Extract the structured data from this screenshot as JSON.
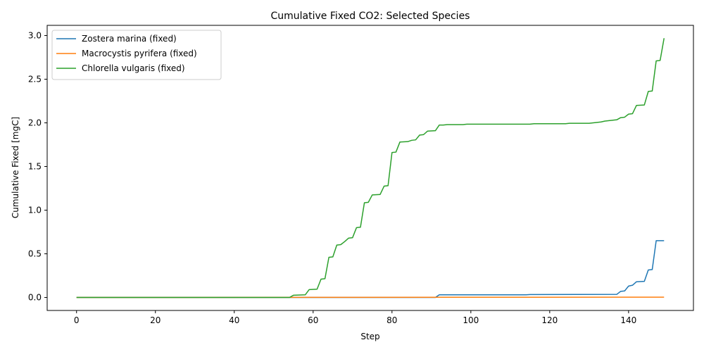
{
  "chart_data": {
    "type": "line",
    "title": "Cumulative Fixed CO2: Selected Species",
    "xlabel": "Step",
    "ylabel": "Cumulative Fixed [mgC]",
    "xlim": [
      -7.45,
      156.45
    ],
    "ylim": [
      -0.149,
      3.117
    ],
    "xticks": [
      0,
      20,
      40,
      60,
      80,
      100,
      120,
      140
    ],
    "yticks": [
      0.0,
      0.5,
      1.0,
      1.5,
      2.0,
      2.5,
      3.0
    ],
    "xtick_labels": [
      "0",
      "20",
      "40",
      "60",
      "80",
      "100",
      "120",
      "140"
    ],
    "ytick_labels": [
      "0.0",
      "0.5",
      "1.0",
      "1.5",
      "2.0",
      "2.5",
      "3.0"
    ],
    "grid": false,
    "legend_position": "upper-left",
    "series": [
      {
        "name": "Zostera marina (fixed)",
        "color": "#1f77b4",
        "points": [
          [
            0,
            0
          ],
          [
            91,
            0
          ],
          [
            92,
            0.03
          ],
          [
            114,
            0.03
          ],
          [
            115,
            0.033
          ],
          [
            137,
            0.035
          ],
          [
            138,
            0.07
          ],
          [
            139,
            0.075
          ],
          [
            140,
            0.13
          ],
          [
            141,
            0.14
          ],
          [
            142,
            0.18
          ],
          [
            144,
            0.185
          ],
          [
            145,
            0.315
          ],
          [
            146,
            0.32
          ],
          [
            147,
            0.65
          ],
          [
            149,
            0.65
          ]
        ]
      },
      {
        "name": "Macrocystis pyrifera (fixed)",
        "color": "#ff7f0e",
        "points": [
          [
            0,
            0
          ],
          [
            149,
            0.003
          ]
        ]
      },
      {
        "name": "Chlorella vulgaris (fixed)",
        "color": "#2ca02c",
        "points": [
          [
            0,
            0
          ],
          [
            54,
            0
          ],
          [
            55,
            0.025
          ],
          [
            58,
            0.03
          ],
          [
            59,
            0.09
          ],
          [
            61,
            0.095
          ],
          [
            62,
            0.21
          ],
          [
            63,
            0.215
          ],
          [
            64,
            0.46
          ],
          [
            65,
            0.465
          ],
          [
            66,
            0.6
          ],
          [
            67,
            0.605
          ],
          [
            68,
            0.64
          ],
          [
            69,
            0.68
          ],
          [
            70,
            0.685
          ],
          [
            71,
            0.8
          ],
          [
            72,
            0.805
          ],
          [
            73,
            1.085
          ],
          [
            74,
            1.09
          ],
          [
            75,
            1.175
          ],
          [
            77,
            1.18
          ],
          [
            78,
            1.275
          ],
          [
            79,
            1.28
          ],
          [
            80,
            1.66
          ],
          [
            81,
            1.665
          ],
          [
            82,
            1.78
          ],
          [
            84,
            1.785
          ],
          [
            85,
            1.8
          ],
          [
            86,
            1.805
          ],
          [
            87,
            1.86
          ],
          [
            88,
            1.865
          ],
          [
            89,
            1.905
          ],
          [
            91,
            1.91
          ],
          [
            92,
            1.975
          ],
          [
            93,
            1.975
          ],
          [
            94,
            1.98
          ],
          [
            98,
            1.98
          ],
          [
            99,
            1.985
          ],
          [
            115,
            1.985
          ],
          [
            116,
            1.99
          ],
          [
            124,
            1.99
          ],
          [
            125,
            1.995
          ],
          [
            130,
            1.995
          ],
          [
            131,
            2.0
          ],
          [
            132,
            2.005
          ],
          [
            133,
            2.01
          ],
          [
            134,
            2.02
          ],
          [
            135,
            2.025
          ],
          [
            136,
            2.03
          ],
          [
            137,
            2.035
          ],
          [
            138,
            2.06
          ],
          [
            139,
            2.065
          ],
          [
            140,
            2.1
          ],
          [
            141,
            2.105
          ],
          [
            142,
            2.2
          ],
          [
            144,
            2.205
          ],
          [
            145,
            2.36
          ],
          [
            146,
            2.365
          ],
          [
            147,
            2.71
          ],
          [
            148,
            2.715
          ],
          [
            149,
            2.97
          ]
        ]
      }
    ]
  }
}
